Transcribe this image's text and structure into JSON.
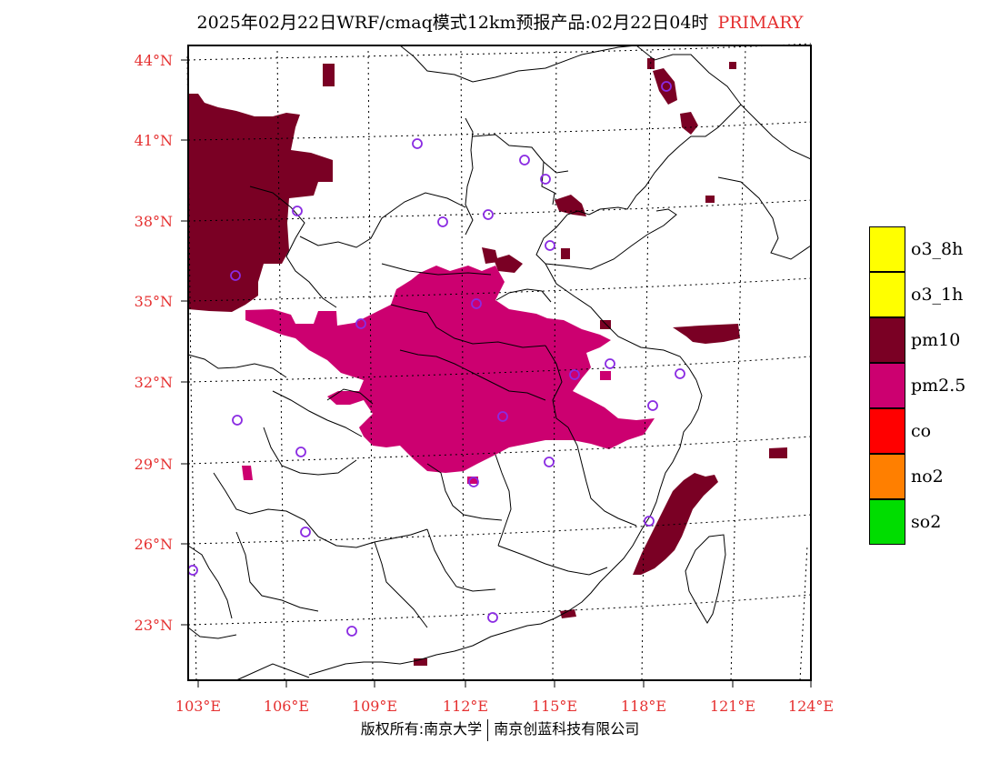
{
  "header": {
    "title": "2025年02月22日WRF/cmaq模式12km预报产品:02月22日04时",
    "tag": "PRIMARY",
    "tag_color": "#e53030"
  },
  "axes": {
    "lat_labels": [
      "44°N",
      "41°N",
      "38°N",
      "35°N",
      "32°N",
      "29°N",
      "26°N",
      "23°N"
    ],
    "lon_labels": [
      "103°E",
      "106°E",
      "109°E",
      "112°E",
      "115°E",
      "118°E",
      "121°E",
      "124°E"
    ],
    "label_color": "#e53030"
  },
  "legend": {
    "items": [
      {
        "label": "o3_8h",
        "color": "#ffff00"
      },
      {
        "label": "o3_1h",
        "color": "#ffff00"
      },
      {
        "label": "pm10",
        "color": "#7a0024"
      },
      {
        "label": "pm2.5",
        "color": "#cc0070"
      },
      {
        "label": "co",
        "color": "#ff0000"
      },
      {
        "label": "no2",
        "color": "#ff7f00"
      },
      {
        "label": "so2",
        "color": "#00dd00"
      }
    ]
  },
  "footer": {
    "left": "版权所有:南京大学",
    "right": "南京创蓝科技有限公司"
  },
  "colors": {
    "pm10": "#7a0024",
    "pm25": "#cc0070",
    "station": "#8a2be2"
  }
}
